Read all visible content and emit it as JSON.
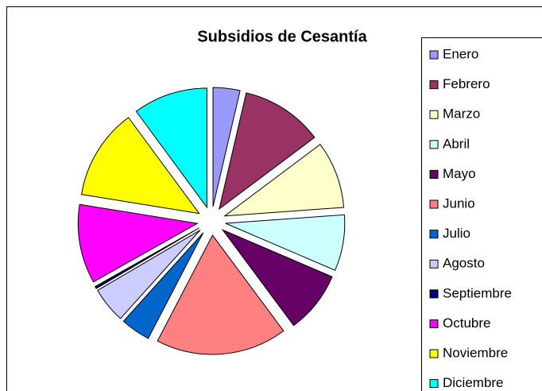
{
  "chart_data": {
    "type": "pie",
    "title": "Subsidios de Cesantía",
    "categories": [
      "Enero",
      "Febrero",
      "Marzo",
      "Abril",
      "Mayo",
      "Junio",
      "Julio",
      "Agosto",
      "Septiembre",
      "Octubre",
      "Noviembre",
      "Diciembre"
    ],
    "values": [
      3.6,
      11,
      9,
      7.5,
      8.3,
      17.6,
      4,
      4.8,
      0.3,
      10.6,
      12.2,
      10
    ],
    "colors": [
      "#9999ff",
      "#993366",
      "#ffffcc",
      "#ccffff",
      "#660066",
      "#ff8080",
      "#0066cc",
      "#ccccff",
      "#000080",
      "#ff00ff",
      "#ffff00",
      "#00ffff"
    ],
    "legend": "right"
  }
}
